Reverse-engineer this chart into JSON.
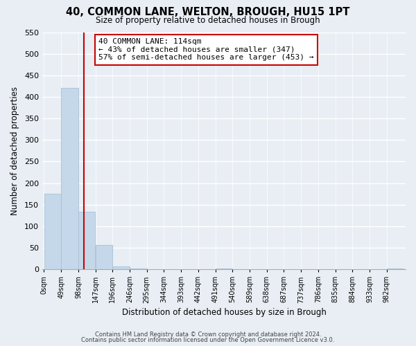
{
  "title": "40, COMMON LANE, WELTON, BROUGH, HU15 1PT",
  "subtitle": "Size of property relative to detached houses in Brough",
  "xlabel": "Distribution of detached houses by size in Brough",
  "ylabel": "Number of detached properties",
  "bar_values": [
    175,
    420,
    133,
    57,
    7,
    2,
    0,
    0,
    0,
    0,
    2,
    0,
    0,
    0,
    0,
    0,
    0,
    0,
    0,
    0,
    2
  ],
  "bar_left_edges": [
    0,
    49,
    98,
    147,
    196,
    245,
    294,
    343,
    392,
    441,
    490,
    539,
    588,
    637,
    686,
    735,
    784,
    833,
    882,
    931,
    980
  ],
  "bin_width": 49,
  "tick_labels": [
    "0sqm",
    "49sqm",
    "98sqm",
    "147sqm",
    "196sqm",
    "246sqm",
    "295sqm",
    "344sqm",
    "393sqm",
    "442sqm",
    "491sqm",
    "540sqm",
    "589sqm",
    "638sqm",
    "687sqm",
    "737sqm",
    "786sqm",
    "835sqm",
    "884sqm",
    "933sqm",
    "982sqm"
  ],
  "property_size": 114,
  "bar_color": "#c5d8ea",
  "bar_edge_color": "#a8c0d6",
  "vline_color": "#cc0000",
  "annotation_title": "40 COMMON LANE: 114sqm",
  "annotation_line1": "← 43% of detached houses are smaller (347)",
  "annotation_line2": "57% of semi-detached houses are larger (453) →",
  "annotation_box_color": "#ffffff",
  "annotation_box_edge": "#cc0000",
  "ylim": [
    0,
    550
  ],
  "yticks": [
    0,
    50,
    100,
    150,
    200,
    250,
    300,
    350,
    400,
    450,
    500,
    550
  ],
  "footer1": "Contains HM Land Registry data © Crown copyright and database right 2024.",
  "footer2": "Contains public sector information licensed under the Open Government Licence v3.0.",
  "bg_color": "#e8eef4"
}
